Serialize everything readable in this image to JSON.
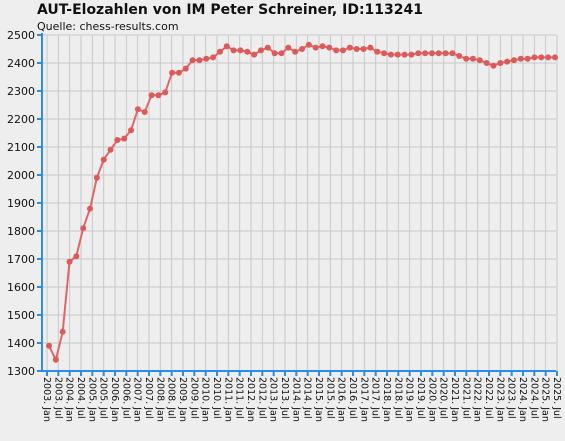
{
  "header": {
    "title": "AUT-Elozahlen von IM Peter Schreiner, ID:113241",
    "source": "Quelle: chess-results.com"
  },
  "colors": {
    "background": "#eeeeee",
    "grid": "#c8c8c8",
    "axis": "#2a8cf0",
    "line": "#e06666",
    "marker": "#dd5a5a"
  },
  "chart_data": {
    "type": "line",
    "title": "AUT-Elozahlen von IM Peter Schreiner, ID:113241",
    "subtitle": "Quelle: chess-results.com",
    "xlabel": "",
    "ylabel": "",
    "ylim": [
      1300,
      2500
    ],
    "yticks": [
      1300,
      1400,
      1500,
      1600,
      1700,
      1800,
      1900,
      2000,
      2100,
      2200,
      2300,
      2400,
      2500
    ],
    "grid": true,
    "xticks": [
      "2003. Jan",
      "2003. Jul",
      "2004. Jan",
      "2004. Jul",
      "2005. Jan",
      "2005. Jul",
      "2006. Jan",
      "2006. Jul",
      "2007. Jan",
      "2007. Jul",
      "2008. Jan",
      "2008. Jul",
      "2009. Jan",
      "2009. Jul",
      "2010. Jan",
      "2010. Jul",
      "2011. Jan",
      "2011. Jul",
      "2012. Jan",
      "2012. Jul",
      "2013. Jan",
      "2013. Jul",
      "2014. Jan",
      "2014. Jul",
      "2015. Jan",
      "2015. Jul",
      "2016. Jan",
      "2016. Jul",
      "2017. Jan",
      "2017. Jul",
      "2018. Jan",
      "2018. Jul",
      "2019. Jan",
      "2019. Jul",
      "2020. Jan",
      "2020. Jul",
      "2021. Jan",
      "2021. Jul",
      "2022. Jan",
      "2022. Jul",
      "2023. Jan",
      "2023. Jul",
      "2024. Jan",
      "2024. Jul",
      "2025. Jan",
      "2025. Jul"
    ],
    "series": [
      {
        "name": "",
        "values": [
          1390,
          1340,
          1440,
          1690,
          1710,
          1810,
          1880,
          1990,
          2055,
          2090,
          2125,
          2130,
          2160,
          2235,
          2225,
          2285,
          2285,
          2295,
          2365,
          2365,
          2380,
          2410,
          2410,
          2415,
          2420,
          2440,
          2460,
          2445,
          2445,
          2440,
          2430,
          2445,
          2455,
          2435,
          2435,
          2455,
          2440,
          2450,
          2465,
          2455,
          2460,
          2455,
          2445,
          2445,
          2455,
          2450,
          2450,
          2455,
          2440,
          2435,
          2430,
          2430,
          2430,
          2430,
          2435,
          2435,
          2435,
          2435,
          2435,
          2435,
          2425,
          2415,
          2415,
          2410,
          2400,
          2390,
          2400,
          2405,
          2410,
          2415,
          2415,
          2420,
          2420,
          2420,
          2420
        ]
      }
    ]
  }
}
